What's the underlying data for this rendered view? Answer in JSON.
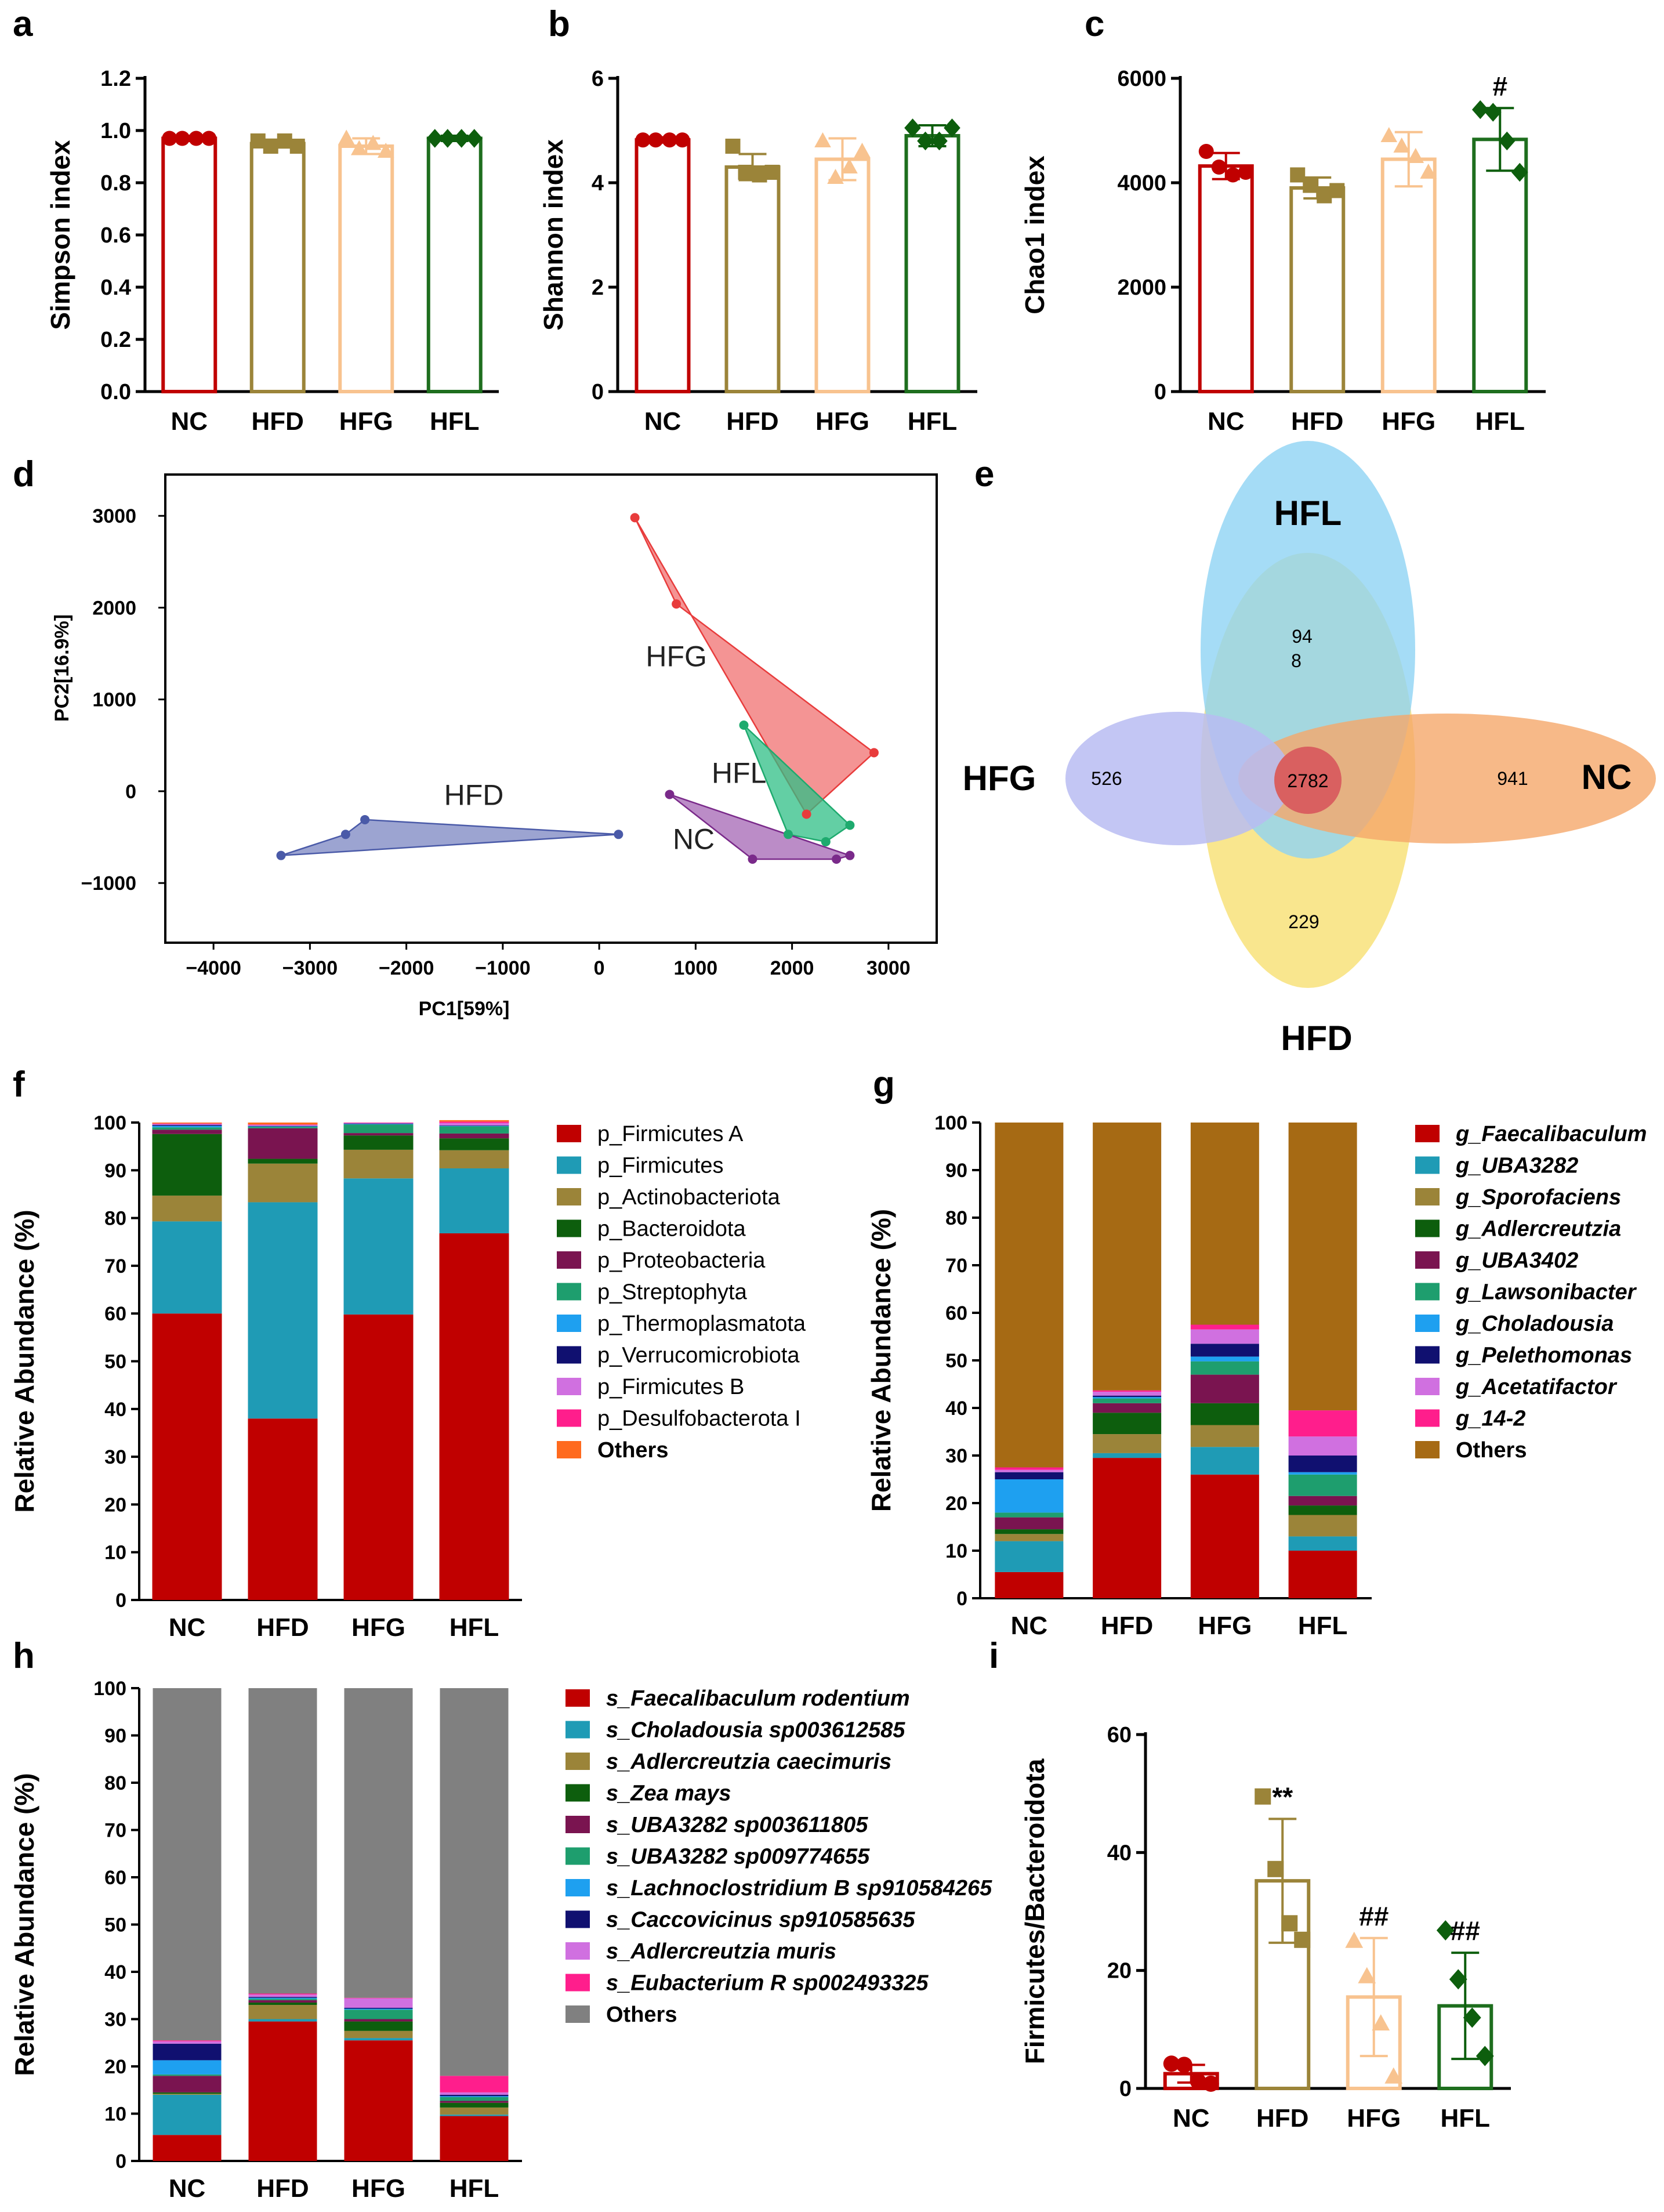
{
  "colors": {
    "NC": "#c00000",
    "HFD": "#9b8439",
    "HFG": "#f8c38f",
    "HFL": "#1e6e1e",
    "HFL_dark": "#0d5e0d"
  },
  "panels": {
    "a": "a",
    "b": "b",
    "c": "c",
    "d": "d",
    "e": "e",
    "f": "f",
    "g": "g",
    "h": "h",
    "i": "i"
  },
  "chart_data": [
    {
      "id": "a",
      "type": "bar",
      "categories": [
        "NC",
        "HFD",
        "HFG",
        "HFL"
      ],
      "values": [
        0.97,
        0.95,
        0.94,
        0.97
      ],
      "errors": [
        0.01,
        0.015,
        0.03,
        0.01
      ],
      "points": [
        [
          0.97,
          0.97,
          0.97,
          0.97
        ],
        [
          0.96,
          0.94,
          0.96,
          0.94
        ],
        [
          0.97,
          0.93,
          0.95,
          0.92
        ],
        [
          0.97,
          0.97,
          0.97,
          0.97
        ]
      ],
      "ylabel": "Simpson index",
      "ylim": [
        0,
        1.2
      ],
      "yticks": [
        0.0,
        0.2,
        0.4,
        0.6,
        0.8,
        1.0,
        1.2
      ],
      "ytick_labels": [
        "0.0",
        "0.2",
        "0.4",
        "0.6",
        "0.8",
        "1.0",
        "1.2"
      ],
      "annotations": [
        "",
        "",
        "",
        ""
      ]
    },
    {
      "id": "b",
      "type": "bar",
      "categories": [
        "NC",
        "HFD",
        "HFG",
        "HFL"
      ],
      "values": [
        4.82,
        4.3,
        4.45,
        4.9
      ],
      "errors": [
        0.05,
        0.25,
        0.4,
        0.2
      ],
      "points": [
        [
          4.82,
          4.82,
          4.82,
          4.82
        ],
        [
          4.7,
          4.2,
          4.15,
          4.2
        ],
        [
          4.8,
          4.1,
          4.3,
          4.6
        ],
        [
          5.05,
          4.8,
          4.8,
          5.05
        ]
      ],
      "ylabel": "Shannon index",
      "ylim": [
        0,
        6
      ],
      "yticks": [
        0,
        2,
        4,
        6
      ],
      "ytick_labels": [
        "0",
        "2",
        "4",
        "6"
      ],
      "annotations": [
        "",
        "",
        "",
        ""
      ]
    },
    {
      "id": "c",
      "type": "bar",
      "categories": [
        "NC",
        "HFD",
        "HFG",
        "HFL"
      ],
      "values": [
        4320,
        3900,
        4450,
        4830
      ],
      "errors": [
        250,
        200,
        520,
        600
      ],
      "points": [
        [
          4600,
          4300,
          4150,
          4200
        ],
        [
          4150,
          3950,
          3750,
          3850
        ],
        [
          4900,
          4700,
          4500,
          4200
        ],
        [
          5400,
          5350,
          4800,
          4200
        ]
      ],
      "ylabel": "Chao1 index",
      "ylim": [
        0,
        6000
      ],
      "yticks": [
        0,
        2000,
        4000,
        6000
      ],
      "ytick_labels": [
        "0",
        "2000",
        "4000",
        "6000"
      ],
      "annotations": [
        "",
        "",
        "",
        "#"
      ]
    },
    {
      "id": "d",
      "type": "scatter",
      "xlabel": "PC1[59%]",
      "ylabel": "PC2[16.9%]",
      "xlim": [
        -4500,
        3500
      ],
      "ylim": [
        -1650,
        3450
      ],
      "xticks": [
        -4000,
        -3000,
        -2000,
        -1000,
        0,
        1000,
        2000,
        3000
      ],
      "xtick_labels": [
        "-4000",
        "-3000",
        "-2000",
        "-1000",
        "0",
        "1000",
        "2000",
        "3000"
      ],
      "yticks": [
        -1000,
        0,
        1000,
        2000,
        3000
      ],
      "ytick_labels": [
        "-1000",
        "0",
        "1000",
        "2000",
        "3000"
      ],
      "series": [
        {
          "name": "HFG",
          "color": "#e83c3c",
          "fill": "#f07070",
          "points": [
            [
              370,
              2980
            ],
            [
              800,
              2040
            ],
            [
              2850,
              420
            ],
            [
              2150,
              -250
            ]
          ],
          "label_at": [
            800,
            1360
          ]
        },
        {
          "name": "HFD",
          "color": "#4a5aa8",
          "fill": "#7b86c2",
          "points": [
            [
              -3300,
              -700
            ],
            [
              -2630,
              -470
            ],
            [
              -2430,
              -310
            ],
            [
              200,
              -470
            ]
          ],
          "label_at": [
            -1300,
            -150
          ]
        },
        {
          "name": "HFL",
          "color": "#1eaa6e",
          "fill": "#2fbf85",
          "points": [
            [
              1500,
              720
            ],
            [
              2600,
              -370
            ],
            [
              2350,
              -550
            ],
            [
              1960,
              -470
            ]
          ],
          "label_at": [
            1450,
            90
          ]
        },
        {
          "name": "NC",
          "color": "#7a2a8a",
          "fill": "#a466b4",
          "points": [
            [
              730,
              -35
            ],
            [
              2600,
              -700
            ],
            [
              2460,
              -740
            ],
            [
              1590,
              -740
            ]
          ],
          "label_at": [
            980,
            -630
          ]
        }
      ]
    },
    {
      "id": "e",
      "type": "venn",
      "sets": [
        "HFL",
        "NC",
        "HFD",
        "HFG"
      ],
      "unique": {
        "HFL": "94\n8",
        "NC": "941",
        "HFD": "229",
        "HFG": "526"
      },
      "unique_lines": {
        "HFL": [
          "94",
          "8"
        ]
      },
      "shared": "2782",
      "set_colors": {
        "HFL": "#8fd3f4",
        "NC": "#f5a86a",
        "HFD": "#f8e27a",
        "HFG": "#b9bcf2"
      }
    },
    {
      "id": "f",
      "type": "bar",
      "stacked": true,
      "categories": [
        "NC",
        "HFD",
        "HFG",
        "HFL"
      ],
      "ylabel": "Relative Abundance (%)",
      "ylim": [
        0,
        100
      ],
      "yticks": [
        0,
        10,
        20,
        30,
        40,
        50,
        60,
        70,
        80,
        90,
        100
      ],
      "series": [
        {
          "name": "p_Firmicutes A",
          "color": "#c00000",
          "values": [
            60,
            38,
            59.8,
            76.8
          ]
        },
        {
          "name": "p_Firmicutes",
          "color": "#1f9bb5",
          "values": [
            19.3,
            45.3,
            28.5,
            13.6
          ]
        },
        {
          "name": "p_Actinobacteriota",
          "color": "#9b8439",
          "values": [
            5.4,
            8.1,
            6.0,
            3.8
          ]
        },
        {
          "name": "p_Bacteroidota",
          "color": "#0d5e0d",
          "values": [
            12.9,
            1.0,
            3.0,
            2.5
          ]
        },
        {
          "name": "p_Proteobacteria",
          "color": "#7a1450",
          "values": [
            0.9,
            6.4,
            0.5,
            1.0
          ]
        },
        {
          "name": "p_Streptophyta",
          "color": "#1e9e6e",
          "values": [
            0.5,
            0.3,
            1.8,
            1.5
          ]
        },
        {
          "name": "p_Thermoplasmatota",
          "color": "#1ea0f0",
          "values": [
            0.3,
            0.1,
            0.1,
            0.1
          ]
        },
        {
          "name": "p_Verrucomicrobiota",
          "color": "#101070",
          "values": [
            0.2,
            0.1,
            0.1,
            0.1
          ]
        },
        {
          "name": "p_Firmicutes B",
          "color": "#d070e0",
          "values": [
            0.2,
            0.2,
            0.1,
            0.5
          ]
        },
        {
          "name": "p_Desulfobacterota I",
          "color": "#ff1e8c",
          "values": [
            0.1,
            0.1,
            0.1,
            0.3
          ]
        },
        {
          "name": "Others",
          "color": "#ff6a1e",
          "values": [
            0.2,
            0.4,
            0.0,
            0.3
          ]
        }
      ]
    },
    {
      "id": "g",
      "type": "bar",
      "stacked": true,
      "categories": [
        "NC",
        "HFD",
        "HFG",
        "HFL"
      ],
      "ylabel": "Relative Abundance (%)",
      "ylim": [
        0,
        100
      ],
      "yticks": [
        0,
        10,
        20,
        30,
        40,
        50,
        60,
        70,
        80,
        90,
        100
      ],
      "series": [
        {
          "name": "g_Faecalibaculum",
          "color": "#c00000",
          "values": [
            5.5,
            29.5,
            26.0,
            10.0
          ]
        },
        {
          "name": "g_UBA3282",
          "color": "#1f9bb5",
          "values": [
            6.5,
            1.0,
            5.8,
            3.0
          ]
        },
        {
          "name": "g_Sporofaciens",
          "color": "#9b8439",
          "values": [
            1.5,
            4.0,
            4.6,
            4.5
          ]
        },
        {
          "name": "g_Adlercreutzia",
          "color": "#0d5e0d",
          "values": [
            1.0,
            4.5,
            4.6,
            2.0
          ]
        },
        {
          "name": "g_UBA3402",
          "color": "#7a1450",
          "values": [
            2.5,
            2.0,
            6.0,
            2.0
          ]
        },
        {
          "name": "g_Lawsonibacter",
          "color": "#1e9e6e",
          "values": [
            1.0,
            1.0,
            2.8,
            4.5
          ]
        },
        {
          "name": "g_Choladousia",
          "color": "#1ea0f0",
          "values": [
            7.0,
            0.3,
            1.0,
            0.5
          ]
        },
        {
          "name": "g_Pelethomonas",
          "color": "#101070",
          "values": [
            1.5,
            0.3,
            2.7,
            3.5
          ]
        },
        {
          "name": "g_Acetatifactor",
          "color": "#d070e0",
          "values": [
            0.5,
            0.8,
            3.0,
            4.0
          ]
        },
        {
          "name": "g_14-2",
          "color": "#ff1e8c",
          "values": [
            0.5,
            0.3,
            1.0,
            5.5
          ]
        },
        {
          "name": "Others",
          "color": "#a66a14",
          "values": [
            72.5,
            56.3,
            42.5,
            60.5
          ]
        }
      ]
    },
    {
      "id": "h",
      "type": "bar",
      "stacked": true,
      "categories": [
        "NC",
        "HFD",
        "HFG",
        "HFL"
      ],
      "ylabel": "Relative Abundance (%)",
      "ylim": [
        0,
        100
      ],
      "yticks": [
        0,
        10,
        20,
        30,
        40,
        50,
        60,
        70,
        80,
        90,
        100
      ],
      "series": [
        {
          "name": "s_Faecalibaculum rodentium",
          "color": "#c00000",
          "values": [
            5.5,
            29.5,
            25.5,
            9.5
          ]
        },
        {
          "name": "s_Choladousia sp003612585",
          "color": "#1f9bb5",
          "values": [
            8.5,
            0.5,
            0.5,
            0.3
          ]
        },
        {
          "name": "s_Adlercreutzia caecimuris",
          "color": "#9b8439",
          "values": [
            0.2,
            3.0,
            1.5,
            1.5
          ]
        },
        {
          "name": "s_Zea mays",
          "color": "#0d5e0d",
          "values": [
            0.3,
            0.5,
            2.0,
            1.0
          ]
        },
        {
          "name": "s_UBA3282 sp003611805",
          "color": "#7a1450",
          "values": [
            3.5,
            0.5,
            0.5,
            0.4
          ]
        },
        {
          "name": "s_UBA3282 sp009774655",
          "color": "#1e9e6e",
          "values": [
            0.3,
            0.3,
            2.0,
            0.8
          ]
        },
        {
          "name": "s_Lachnoclostridium B sp910584265",
          "color": "#1ea0f0",
          "values": [
            3.0,
            0.2,
            0.2,
            0.2
          ]
        },
        {
          "name": "s_Caccovicinus sp910585635",
          "color": "#101070",
          "values": [
            3.5,
            0.2,
            0.2,
            0.3
          ]
        },
        {
          "name": "s_Adlercreutzia muris",
          "color": "#d070e0",
          "values": [
            0.5,
            0.5,
            2.0,
            0.5
          ]
        },
        {
          "name": "s_Eubacterium R sp002493325",
          "color": "#ff1e8c",
          "values": [
            0.2,
            0.2,
            0.1,
            3.5
          ]
        },
        {
          "name": "Others",
          "color": "#808080",
          "values": [
            74.5,
            64.6,
            65.5,
            82.0
          ]
        }
      ]
    },
    {
      "id": "i",
      "type": "bar",
      "categories": [
        "NC",
        "HFD",
        "HFG",
        "HFL"
      ],
      "values": [
        2.5,
        35.2,
        15.5,
        14.0
      ],
      "errors": [
        1.5,
        10.5,
        10.0,
        9.0
      ],
      "points": [
        [
          4.2,
          4.0,
          1.2,
          0.8
        ],
        [
          49.5,
          37.2,
          28.0,
          25.2
        ],
        [
          25.0,
          19.0,
          11.0,
          2.0
        ],
        [
          26.8,
          18.5,
          12.0,
          5.5
        ]
      ],
      "ylabel": "Firmicutes/Bacteroidota",
      "ylim": [
        0,
        60
      ],
      "yticks": [
        0,
        20,
        40,
        60
      ],
      "ytick_labels": [
        "0",
        "20",
        "40",
        "60"
      ],
      "annotations": [
        "",
        "**",
        "##",
        "##"
      ]
    }
  ]
}
